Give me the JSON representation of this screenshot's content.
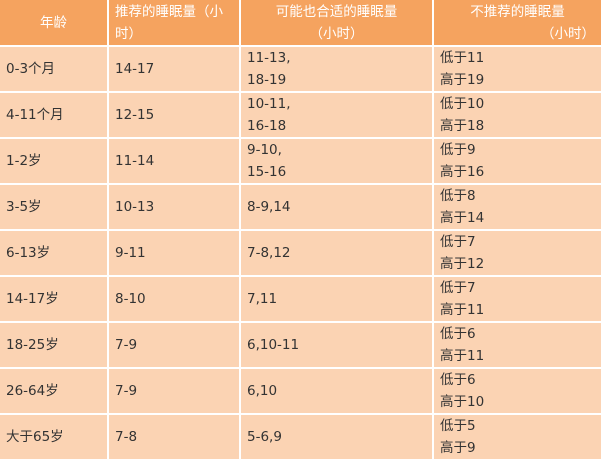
{
  "table": {
    "header": [
      [
        "年龄"
      ],
      [
        "推荐的睡眠量（小",
        "时）"
      ],
      [
        "可能也合适的睡眠量",
        "（小时）"
      ],
      [
        "不推荐的睡眠量",
        "（小时）"
      ]
    ],
    "rows": [
      [
        [
          "0-3个月"
        ],
        [
          "14-17"
        ],
        [
          "11-13,",
          "18-19"
        ],
        [
          "低于11",
          "高于19"
        ]
      ],
      [
        [
          "4-11个月"
        ],
        [
          "12-15"
        ],
        [
          "10-11,",
          "16-18"
        ],
        [
          "低于10",
          "高于18"
        ]
      ],
      [
        [
          "1-2岁"
        ],
        [
          "11-14"
        ],
        [
          "9-10,",
          "15-16"
        ],
        [
          "低于9",
          "高于16"
        ]
      ],
      [
        [
          "3-5岁"
        ],
        [
          "10-13"
        ],
        [
          "8-9,14"
        ],
        [
          "低于8",
          "高于14"
        ]
      ],
      [
        [
          "6-13岁"
        ],
        [
          "9-11"
        ],
        [
          "7-8,12"
        ],
        [
          "低于7",
          "高于12"
        ]
      ],
      [
        [
          "14-17岁"
        ],
        [
          "8-10"
        ],
        [
          "7,11"
        ],
        [
          "低于7",
          "高于11"
        ]
      ],
      [
        [
          "18-25岁"
        ],
        [
          "7-9"
        ],
        [
          "6,10-11"
        ],
        [
          "低于6",
          "高于11"
        ]
      ],
      [
        [
          "26-64岁"
        ],
        [
          "7-9"
        ],
        [
          "6,10"
        ],
        [
          "低于6",
          "高于10"
        ]
      ],
      [
        [
          "大于65岁"
        ],
        [
          "7-8"
        ],
        [
          "5-6,9"
        ],
        [
          "低于5",
          "高于9"
        ]
      ]
    ]
  }
}
